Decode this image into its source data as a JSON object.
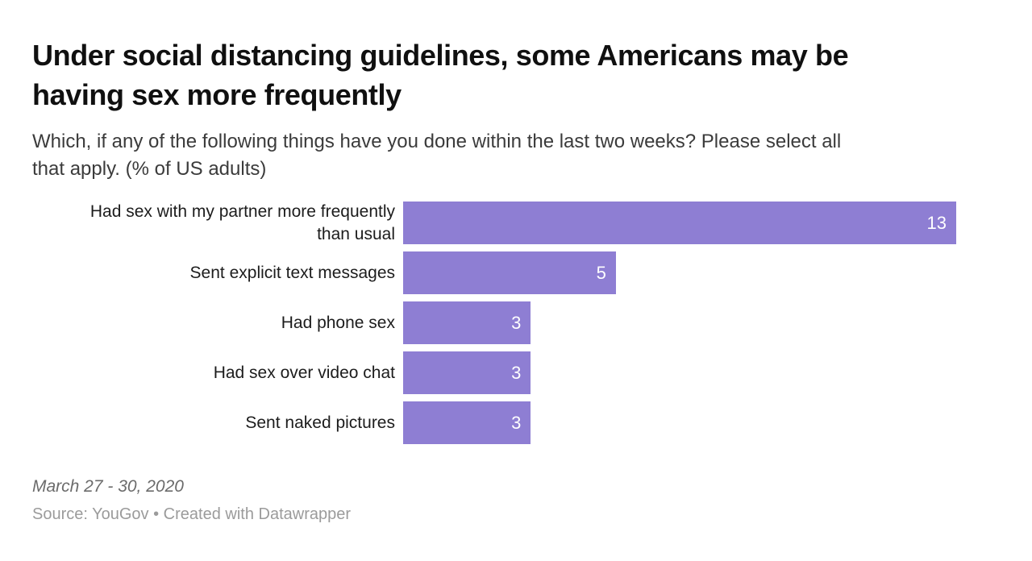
{
  "header": {
    "title_lines": [
      "Under social distancing guidelines, some Americans may be",
      "having sex more frequently"
    ],
    "subtitle_lines": [
      "Which, if any of the following things have you done within the last two weeks? Please select all",
      "that apply. (% of US adults)"
    ]
  },
  "chart_data": {
    "type": "bar",
    "orientation": "horizontal",
    "title": "Under social distancing guidelines, some Americans may be having sex more frequently",
    "subtitle": "Which, if any of the following things have you done within the last two weeks? Please select all that apply. (% of US adults)",
    "categories": [
      "Had sex with my partner more frequently than usual",
      "Sent explicit text messages",
      "Had phone sex",
      "Had sex over video chat",
      "Sent naked pictures"
    ],
    "values": [
      13,
      5,
      3,
      3,
      3
    ],
    "xlim": [
      0,
      14.25
    ],
    "grid": false,
    "axis_shown": false,
    "value_labels_inside_bars": true,
    "bar_color": "#8e7ed3",
    "value_label_color": "#ffffff",
    "category_label_color": "#1c1c1c"
  },
  "footer": {
    "date_note": "March 27 - 30, 2020",
    "source_line": "Source: YouGov • Created with Datawrapper"
  }
}
